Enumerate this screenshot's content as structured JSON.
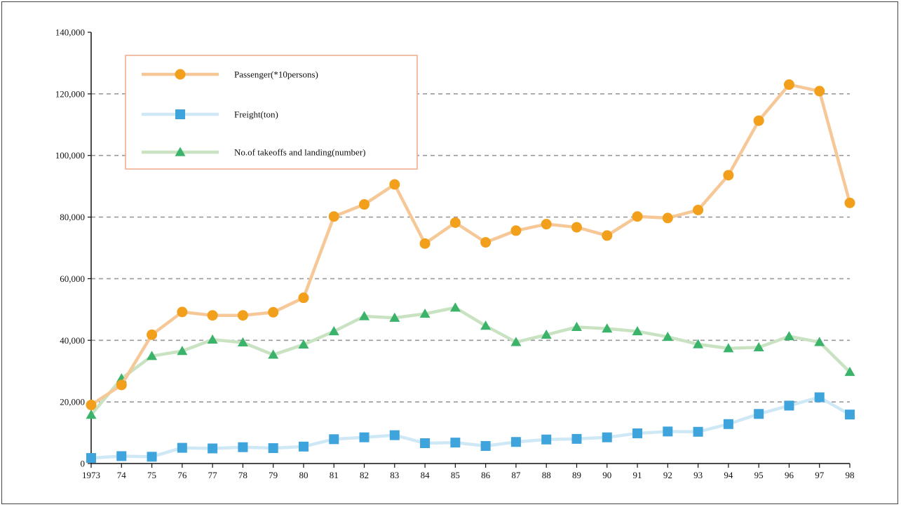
{
  "chart_data": {
    "type": "line",
    "x": [
      "1973",
      "74",
      "75",
      "76",
      "77",
      "78",
      "79",
      "80",
      "81",
      "82",
      "83",
      "84",
      "85",
      "86",
      "87",
      "88",
      "89",
      "90",
      "91",
      "92",
      "93",
      "94",
      "95",
      "96",
      "97",
      "98"
    ],
    "ylim": [
      0,
      140000
    ],
    "yticks": [
      0,
      20000,
      40000,
      60000,
      80000,
      100000,
      120000,
      140000
    ],
    "ytick_labels": [
      "0",
      "20,000",
      "40,000",
      "60,000",
      "80,000",
      "100,000",
      "120,000",
      "140,000"
    ],
    "grid": "horizontal-dashed",
    "legend_position": "top-left",
    "series": [
      {
        "name": "Passenger(*10persons)",
        "marker": "circle",
        "line_color": "#f6c897",
        "marker_color": "#f2a01c",
        "values": [
          19000,
          25500,
          41800,
          49200,
          48100,
          48100,
          49100,
          53800,
          80200,
          84100,
          90600,
          71400,
          78200,
          71800,
          75600,
          77700,
          76700,
          74000,
          80200,
          79700,
          82300,
          93600,
          111300,
          123000,
          120900,
          84600
        ]
      },
      {
        "name": "Freight(ton)",
        "marker": "square",
        "line_color": "#cfe8f6",
        "marker_color": "#3fa3dc",
        "values": [
          1800,
          2400,
          2200,
          5100,
          4900,
          5300,
          5000,
          5500,
          7900,
          8500,
          9200,
          6600,
          6800,
          5700,
          7000,
          7800,
          8000,
          8500,
          9800,
          10400,
          10300,
          12800,
          16100,
          18800,
          21500,
          15900
        ]
      },
      {
        "name": "No.of takeoffs and landing(number)",
        "marker": "triangle",
        "line_color": "#c9e3c2",
        "marker_color": "#3cb36a",
        "values": [
          15800,
          27600,
          34900,
          36500,
          40200,
          39300,
          35300,
          38600,
          42900,
          47800,
          47300,
          48600,
          50600,
          44700,
          39400,
          41800,
          44300,
          43800,
          42900,
          41100,
          38700,
          37400,
          37700,
          41300,
          39400,
          29700
        ]
      }
    ]
  }
}
